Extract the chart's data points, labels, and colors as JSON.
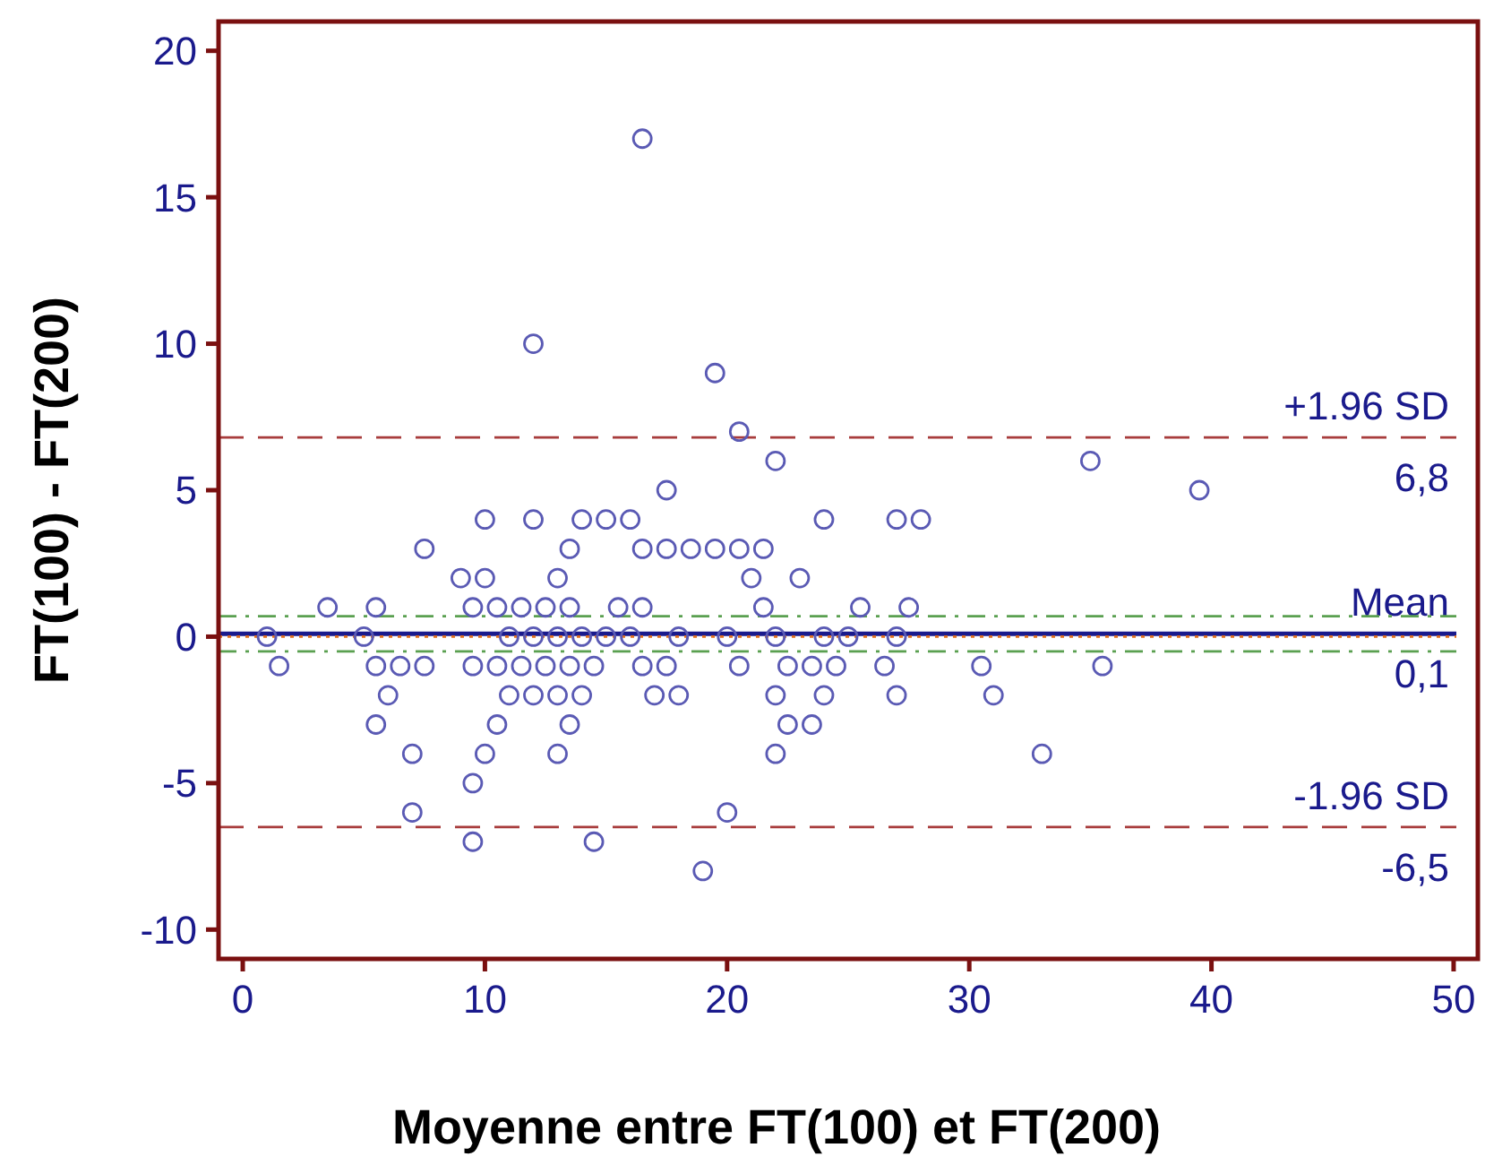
{
  "chart_data": {
    "type": "scatter",
    "xlabel": "Moyenne entre FT(100) et FT(200)",
    "ylabel": "FT(100) - FT(200)",
    "xlim": [
      -1,
      51
    ],
    "ylim": [
      -11,
      21
    ],
    "xticks": [
      0,
      10,
      20,
      30,
      40,
      50
    ],
    "yticks": [
      -10,
      -5,
      0,
      5,
      10,
      15,
      20
    ],
    "grid": false,
    "marker": "circle",
    "series": [
      {
        "color": "#5a5ab4",
        "x": [
          16.5,
          12,
          19.5,
          20.5,
          22,
          35,
          17.5,
          39.5,
          10,
          12,
          14,
          15,
          16,
          24,
          27,
          28,
          7.5,
          13.5,
          16.5,
          17.5,
          18.5,
          19.5,
          20.5,
          21.5,
          9,
          10,
          13,
          21,
          23,
          3.5,
          5.5,
          9.5,
          10.5,
          11.5,
          12.5,
          13.5,
          15.5,
          16.5,
          21.5,
          25.5,
          27.5,
          1,
          5,
          11,
          12,
          13,
          14,
          15,
          16,
          18,
          20,
          22,
          24,
          25,
          27,
          1.5,
          5.5,
          6.5,
          7.5,
          9.5,
          10.5,
          11.5,
          12.5,
          13.5,
          14.5,
          16.5,
          17.5,
          20.5,
          22.5,
          23.5,
          24.5,
          26.5,
          30.5,
          35.5,
          6,
          11,
          12,
          13,
          14,
          17,
          18,
          22,
          24,
          27,
          31,
          5.5,
          10.5,
          13.5,
          22.5,
          23.5,
          7,
          10,
          13,
          22,
          33,
          9.5,
          7,
          20,
          9.5,
          14.5,
          19
        ],
        "values": [
          17,
          10,
          9,
          7,
          6,
          6,
          5,
          5,
          4,
          4,
          4,
          4,
          4,
          4,
          4,
          4,
          3,
          3,
          3,
          3,
          3,
          3,
          3,
          3,
          2,
          2,
          2,
          2,
          2,
          1,
          1,
          1,
          1,
          1,
          1,
          1,
          1,
          1,
          1,
          1,
          1,
          0,
          0,
          0,
          0,
          0,
          0,
          0,
          0,
          0,
          0,
          0,
          0,
          0,
          0,
          -1,
          -1,
          -1,
          -1,
          -1,
          -1,
          -1,
          -1,
          -1,
          -1,
          -1,
          -1,
          -1,
          -1,
          -1,
          -1,
          -1,
          -1,
          -1,
          -2,
          -2,
          -2,
          -2,
          -2,
          -2,
          -2,
          -2,
          -2,
          -2,
          -2,
          -3,
          -3,
          -3,
          -3,
          -3,
          -4,
          -4,
          -4,
          -4,
          -4,
          -5,
          -6,
          -6,
          -7,
          -7,
          -8
        ]
      }
    ],
    "ref_lines": [
      {
        "axis": "y",
        "value": 6.8,
        "label": "+1.96 SD",
        "color": "#a83c3c",
        "line_style": "dashed"
      },
      {
        "axis": "y",
        "value": 0.1,
        "label": "Mean",
        "color": "#1a1a8c",
        "line_style": "solid"
      },
      {
        "axis": "y",
        "value": -6.5,
        "label": "-1.96 SD",
        "color": "#a83c3c",
        "line_style": "dashed"
      },
      {
        "axis": "y",
        "value": 0.7,
        "label": null,
        "color": "#5aa050",
        "line_style": "dashdot"
      },
      {
        "axis": "y",
        "value": -0.5,
        "label": null,
        "color": "#5aa050",
        "line_style": "dashdot"
      },
      {
        "axis": "y",
        "value": 0,
        "label": null,
        "color": "#e07020",
        "line_style": "dotted"
      }
    ],
    "annotations": [
      {
        "text": "6,8",
        "y": 6.8
      },
      {
        "text": "0,1",
        "y": 0.1
      },
      {
        "text": "-6,5",
        "y": -6.5
      }
    ]
  }
}
